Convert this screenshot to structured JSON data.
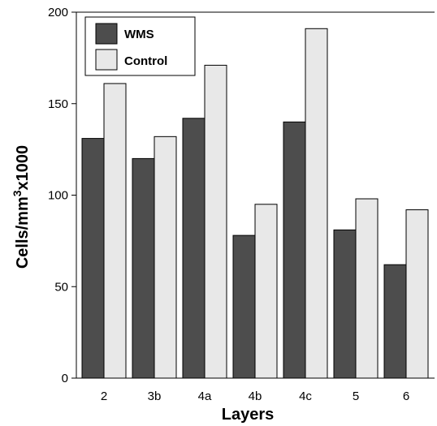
{
  "chart_data": {
    "type": "bar",
    "title": "",
    "xlabel": "Layers",
    "ylabel": {
      "main": "Cells/mm",
      "sup": "3",
      "rest": "x1000"
    },
    "ylim": [
      0,
      200
    ],
    "yticks": [
      0,
      50,
      100,
      150,
      200
    ],
    "categories": [
      "2",
      "3b",
      "4a",
      "4b",
      "4c",
      "5",
      "6"
    ],
    "series": [
      {
        "name": "WMS",
        "color": "#4d4d4d",
        "values": [
          131,
          120,
          142,
          78,
          140,
          81,
          62
        ]
      },
      {
        "name": "Control",
        "color": "#e8e8e8",
        "values": [
          161,
          132,
          171,
          95,
          191,
          98,
          92
        ]
      }
    ],
    "grid": false,
    "legend": "top-left",
    "bar_edge_color": "#000000"
  }
}
